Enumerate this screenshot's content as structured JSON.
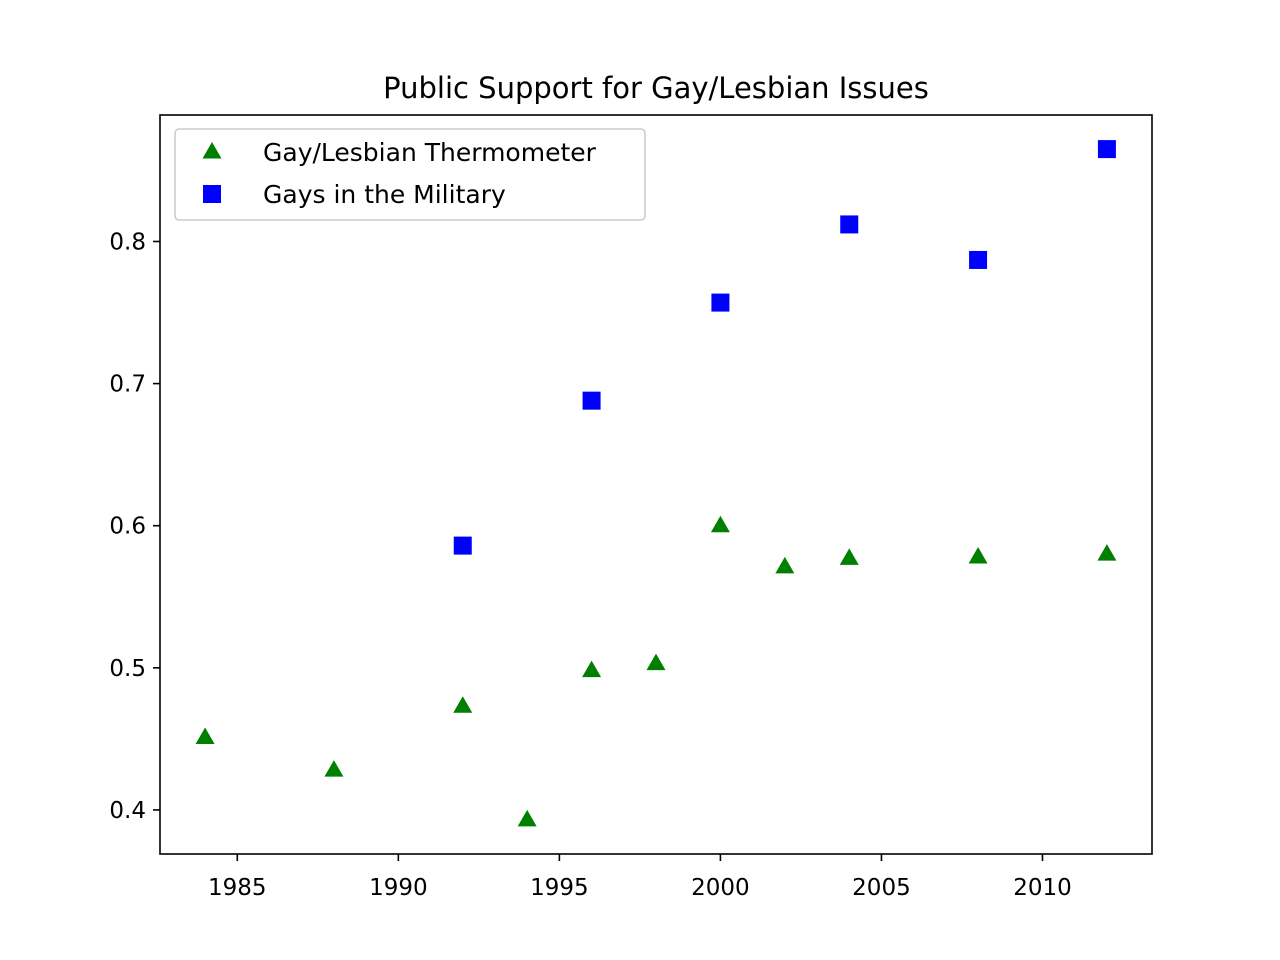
{
  "chart_data": {
    "type": "scatter",
    "title": "Public Support for Gay/Lesbian Issues",
    "xlabel": "",
    "ylabel": "",
    "xlim": [
      1982.6,
      2013.4
    ],
    "ylim": [
      0.369,
      0.889
    ],
    "x_ticks": [
      1985,
      1990,
      1995,
      2000,
      2005,
      2010
    ],
    "y_ticks": [
      0.4,
      0.5,
      0.6,
      0.7,
      0.8
    ],
    "grid": false,
    "legend_position": "top-left",
    "series": [
      {
        "name": "Gay/Lesbian Thermometer",
        "marker": "triangle",
        "color": "#008000",
        "points": [
          {
            "x": 1984,
            "y": 0.451
          },
          {
            "x": 1988,
            "y": 0.428
          },
          {
            "x": 1992,
            "y": 0.473
          },
          {
            "x": 1994,
            "y": 0.393
          },
          {
            "x": 1996,
            "y": 0.498
          },
          {
            "x": 1998,
            "y": 0.503
          },
          {
            "x": 2000,
            "y": 0.6
          },
          {
            "x": 2002,
            "y": 0.571
          },
          {
            "x": 2004,
            "y": 0.577
          },
          {
            "x": 2008,
            "y": 0.578
          },
          {
            "x": 2012,
            "y": 0.58
          }
        ]
      },
      {
        "name": "Gays in the Military",
        "marker": "square",
        "color": "#0000ff",
        "points": [
          {
            "x": 1992,
            "y": 0.586
          },
          {
            "x": 1996,
            "y": 0.688
          },
          {
            "x": 2000,
            "y": 0.757
          },
          {
            "x": 2004,
            "y": 0.812
          },
          {
            "x": 2008,
            "y": 0.787
          },
          {
            "x": 2012,
            "y": 0.865
          }
        ]
      }
    ]
  }
}
